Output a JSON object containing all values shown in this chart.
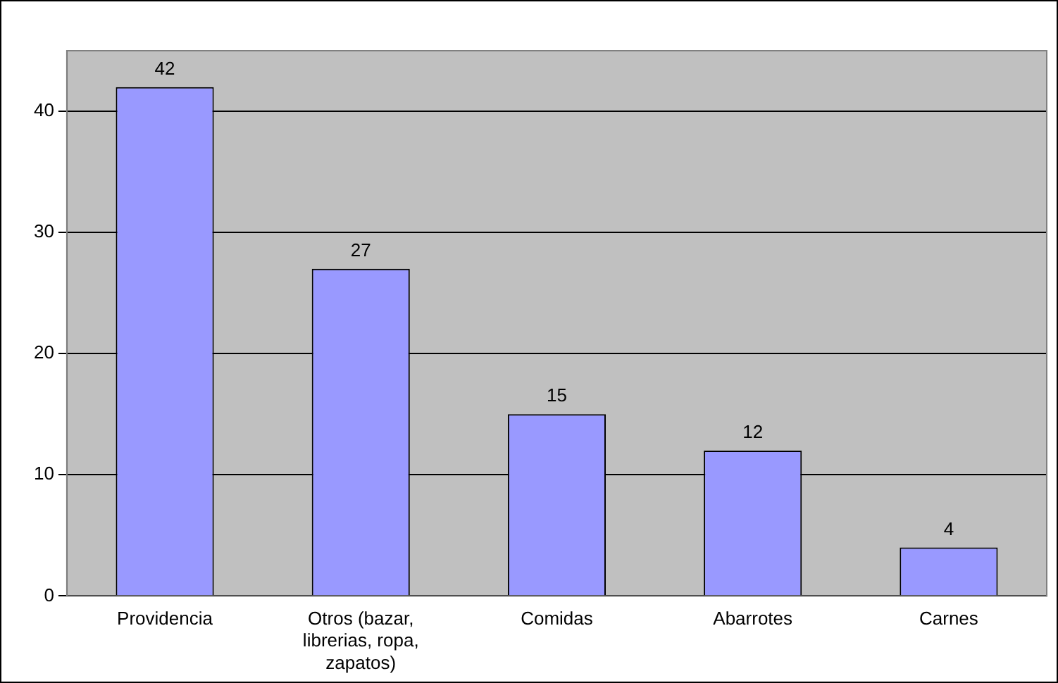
{
  "chart_data": {
    "type": "bar",
    "categories": [
      "Providencia",
      "Otros (bazar, librerias, ropa, zapatos)",
      "Comidas",
      "Abarrotes",
      "Carnes"
    ],
    "values": [
      42,
      27,
      15,
      12,
      4
    ],
    "color": "#9999ff",
    "ylim": [
      0,
      45
    ],
    "yticks": [
      0,
      10,
      20,
      30,
      40
    ],
    "grid": "y",
    "data_labels": true,
    "legend": false
  }
}
